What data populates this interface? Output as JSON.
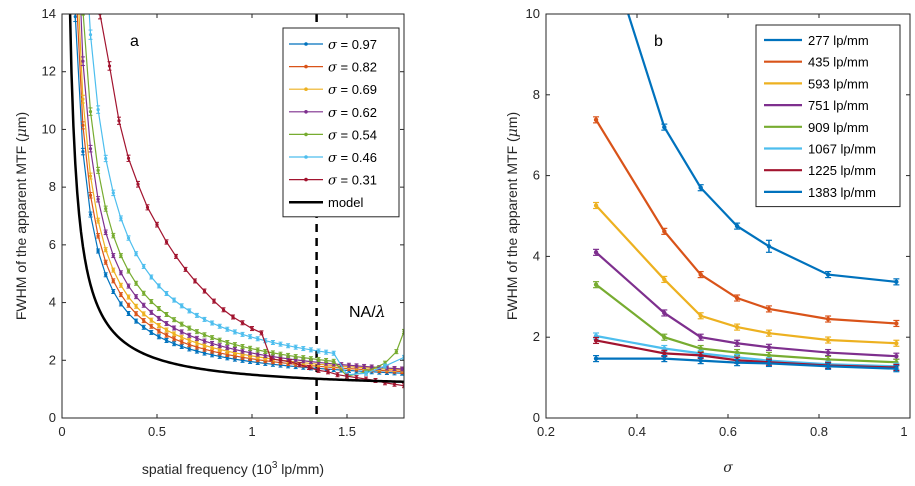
{
  "chart_data": [
    {
      "type": "line",
      "panel_label": "a",
      "xlabel": "spatial frequency (10³ lp/mm)",
      "ylabel": "FWHM of the apparent MTF (μm)",
      "xlim": [
        0,
        1.8
      ],
      "ylim": [
        0,
        14
      ],
      "xticks": [
        "0",
        "0.5",
        "1",
        "1.5"
      ],
      "yticks": [
        "0",
        "2",
        "4",
        "6",
        "8",
        "10",
        "12",
        "14"
      ],
      "grid": false,
      "legend_position": "top-right",
      "vline": {
        "x": 1.34,
        "label": "NA/λ",
        "style": "dashed"
      },
      "series": [
        {
          "name": "σ = 0.97",
          "color": "#0072BD",
          "model": {
            "a": 0.9,
            "b": 1.05,
            "c": 0.02
          },
          "tail": []
        },
        {
          "name": "σ = 0.82",
          "color": "#D95319",
          "model": {
            "a": 1.0,
            "b": 1.05,
            "c": 0.03
          },
          "tail": []
        },
        {
          "name": "σ = 0.69",
          "color": "#EDB120",
          "model": {
            "a": 1.1,
            "b": 1.05,
            "c": 0.04
          },
          "tail": []
        },
        {
          "name": "σ = 0.62",
          "color": "#7E2F8E",
          "model": {
            "a": 1.25,
            "b": 1.0,
            "c": 0.05
          },
          "tail": []
        },
        {
          "name": "σ = 0.54",
          "color": "#77AC30",
          "model": {
            "a": 1.45,
            "b": 0.95,
            "c": 0.06
          },
          "tail": [
            [
              1.5,
              1.45
            ],
            [
              1.6,
              1.6
            ],
            [
              1.7,
              1.9
            ],
            [
              1.76,
              2.3
            ],
            [
              1.8,
              3.0
            ]
          ]
        },
        {
          "name": "σ = 0.46",
          "color": "#4DBEEE",
          "model": {
            "a": 1.85,
            "b": 0.95,
            "c": 0.08
          },
          "tail": [
            [
              1.5,
              1.5
            ],
            [
              1.6,
              1.55
            ],
            [
              1.7,
              1.8
            ],
            [
              1.8,
              2.1
            ]
          ]
        },
        {
          "name": "σ = 0.31",
          "color": "#A2142F",
          "points": [
            [
              0.2,
              14.0
            ],
            [
              0.25,
              12.2
            ],
            [
              0.3,
              10.3
            ],
            [
              0.35,
              9.0
            ],
            [
              0.4,
              8.1
            ],
            [
              0.45,
              7.3
            ],
            [
              0.5,
              6.7
            ],
            [
              0.55,
              6.1
            ],
            [
              0.6,
              5.6
            ],
            [
              0.65,
              5.15
            ],
            [
              0.7,
              4.75
            ],
            [
              0.75,
              4.4
            ],
            [
              0.8,
              4.05
            ],
            [
              0.85,
              3.75
            ],
            [
              0.9,
              3.5
            ],
            [
              0.95,
              3.3
            ],
            [
              1.0,
              3.1
            ],
            [
              1.05,
              2.95
            ],
            [
              1.1,
              2.05
            ],
            [
              1.15,
              2.0
            ],
            [
              1.2,
              1.95
            ],
            [
              1.25,
              1.85
            ],
            [
              1.3,
              1.75
            ],
            [
              1.35,
              1.65
            ],
            [
              1.4,
              1.6
            ],
            [
              1.45,
              1.5
            ],
            [
              1.5,
              1.45
            ],
            [
              1.55,
              1.4
            ],
            [
              1.6,
              1.35
            ],
            [
              1.65,
              1.3
            ],
            [
              1.7,
              1.22
            ],
            [
              1.75,
              1.17
            ],
            [
              1.8,
              1.12
            ]
          ]
        },
        {
          "name": "model",
          "color": "#000000"
        }
      ]
    },
    {
      "type": "line",
      "panel_label": "b",
      "xlabel": "σ",
      "ylabel": "FWHM of the apparent MTF (μm)",
      "xlim": [
        0.2,
        1.0
      ],
      "ylim": [
        0,
        10
      ],
      "xticks": [
        "0.2",
        "0.4",
        "0.6",
        "0.8",
        "1"
      ],
      "yticks": [
        "0",
        "2",
        "4",
        "6",
        "8",
        "10"
      ],
      "grid": false,
      "legend_position": "top-right",
      "x": [
        0.31,
        0.46,
        0.54,
        0.62,
        0.69,
        0.82,
        0.97
      ],
      "series": [
        {
          "name": "277 lp/mm",
          "color": "#0072BD",
          "values": [
            12.5,
            7.2,
            5.7,
            4.75,
            4.25,
            3.55,
            3.37
          ]
        },
        {
          "name": "435 lp/mm",
          "color": "#D95319",
          "values": [
            7.38,
            4.62,
            3.55,
            2.97,
            2.7,
            2.45,
            2.34
          ]
        },
        {
          "name": "593 lp/mm",
          "color": "#EDB120",
          "values": [
            5.26,
            3.43,
            2.53,
            2.25,
            2.1,
            1.93,
            1.85
          ]
        },
        {
          "name": "751 lp/mm",
          "color": "#7E2F8E",
          "values": [
            4.1,
            2.6,
            2.0,
            1.85,
            1.75,
            1.62,
            1.53
          ]
        },
        {
          "name": "909 lp/mm",
          "color": "#77AC30",
          "values": [
            3.3,
            2.0,
            1.72,
            1.62,
            1.55,
            1.45,
            1.38
          ]
        },
        {
          "name": "1067 lp/mm",
          "color": "#4DBEEE",
          "values": [
            2.03,
            1.72,
            1.6,
            1.5,
            1.42,
            1.33,
            1.28
          ]
        },
        {
          "name": "1225 lp/mm",
          "color": "#A2142F",
          "values": [
            1.92,
            1.6,
            1.55,
            1.43,
            1.38,
            1.3,
            1.25
          ]
        },
        {
          "name": "1383 lp/mm",
          "color": "#0072BD",
          "values": [
            1.47,
            1.47,
            1.42,
            1.37,
            1.35,
            1.28,
            1.22
          ]
        }
      ]
    }
  ]
}
